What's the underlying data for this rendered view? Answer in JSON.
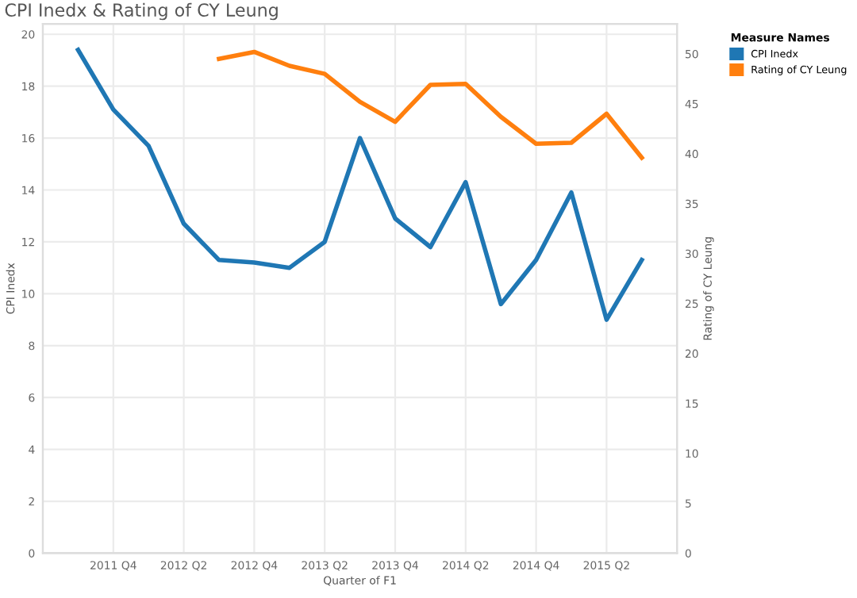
{
  "chart_data": {
    "type": "line",
    "title": "CPI Inedx & Rating of CY Leung",
    "xlabel": "Quarter of F1",
    "ylabel": "CPI Inedx",
    "y2label": "Rating of CY Leung",
    "legend_title": "Measure Names",
    "categories": [
      null,
      "2011 Q4",
      null,
      "2012 Q2",
      null,
      "2012 Q4",
      null,
      "2013 Q2",
      null,
      "2013 Q4",
      null,
      "2014 Q2",
      null,
      "2014 Q4",
      null,
      "2015 Q2",
      null
    ],
    "series": [
      {
        "name": "CPI Inedx",
        "color": "#1f77b4",
        "values": [
          19.4,
          17.1,
          15.7,
          12.7,
          11.3,
          11.2,
          11.0,
          12.0,
          16.0,
          12.9,
          11.8,
          14.3,
          9.6,
          11.3,
          13.9,
          9.0,
          11.3
        ]
      },
      {
        "name": "Rating of CY Leung",
        "color": "#ff7f0e",
        "axis": "y2",
        "values": [
          null,
          null,
          null,
          null,
          49.5,
          50.2,
          48.8,
          48.0,
          45.2,
          43.2,
          46.9,
          47.0,
          43.7,
          41.0,
          41.1,
          44.0,
          39.6
        ]
      }
    ],
    "ylim": [
      0,
      20.4
    ],
    "yticks": [
      0,
      2,
      4,
      6,
      8,
      10,
      12,
      14,
      16,
      18,
      20
    ],
    "y2lim": [
      0,
      53
    ],
    "y2ticks": [
      0,
      5,
      10,
      15,
      20,
      25,
      30,
      35,
      40,
      45,
      50
    ],
    "grid": true,
    "legend": "top right",
    "marker": "none",
    "line_style": "solid"
  }
}
